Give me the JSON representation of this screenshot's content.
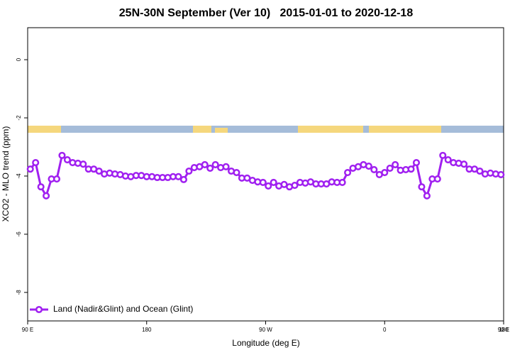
{
  "chart_data": {
    "type": "line",
    "title": "25N-30N September (Ver 10)   2015-01-01 to 2020-12-18",
    "x_label": "Longitude (deg E)",
    "y_label": "XCO2 - MLO trend (ppm)",
    "xlim": [
      90,
      450
    ],
    "xticks": [
      {
        "value": 90,
        "label": "90 E"
      },
      {
        "value": 180,
        "label": "180"
      },
      {
        "value": 270,
        "label": "90 W"
      },
      {
        "value": 360,
        "label": "0"
      },
      {
        "value": 450,
        "label": "90 E"
      },
      {
        "value": 540,
        "label": "180"
      }
    ],
    "ylim": [
      -8.98,
      1.1
    ],
    "yticks": [
      0,
      -2,
      -4,
      -6,
      -8
    ],
    "legend": "bottom-left",
    "x": [
      92,
      96,
      100,
      104,
      108,
      112,
      116,
      120,
      124,
      128,
      132,
      136,
      140,
      144,
      148,
      152,
      156,
      160,
      164,
      168,
      172,
      176,
      180,
      184,
      188,
      192,
      196,
      200,
      204,
      208,
      212,
      216,
      220,
      224,
      228,
      232,
      236,
      240,
      244,
      248,
      252,
      256,
      260,
      264,
      268,
      272,
      276,
      280,
      284,
      288,
      292,
      296,
      300,
      304,
      308,
      312,
      316,
      320,
      324,
      328,
      332,
      336,
      340,
      344,
      348,
      352,
      356,
      360,
      364,
      368,
      372,
      376,
      380,
      384,
      388,
      392,
      396,
      400,
      404,
      408,
      412,
      416,
      420,
      424,
      428,
      432,
      436,
      440,
      444,
      448
    ],
    "series": [
      {
        "name": "Land (Nadir&Glint) and Ocean (Glint)",
        "color": "#a020f0",
        "values": [
          -3.76,
          -3.54,
          -4.37,
          -4.68,
          -4.1,
          -4.1,
          -3.29,
          -3.44,
          -3.54,
          -3.56,
          -3.59,
          -3.76,
          -3.76,
          -3.83,
          -3.93,
          -3.9,
          -3.93,
          -3.95,
          -4.0,
          -4.02,
          -3.98,
          -3.98,
          -4.02,
          -4.02,
          -4.05,
          -4.05,
          -4.05,
          -4.02,
          -4.02,
          -4.12,
          -3.83,
          -3.71,
          -3.68,
          -3.61,
          -3.73,
          -3.61,
          -3.71,
          -3.68,
          -3.83,
          -3.88,
          -4.07,
          -4.07,
          -4.15,
          -4.2,
          -4.22,
          -4.34,
          -4.22,
          -4.34,
          -4.29,
          -4.37,
          -4.32,
          -4.22,
          -4.24,
          -4.2,
          -4.27,
          -4.27,
          -4.27,
          -4.2,
          -4.22,
          -4.22,
          -3.88,
          -3.73,
          -3.68,
          -3.61,
          -3.66,
          -3.78,
          -3.95,
          -3.88,
          -3.73,
          -3.61,
          -3.8,
          -3.78,
          -3.76,
          -3.54,
          -4.37,
          -4.68,
          -4.1,
          -4.1,
          -3.29,
          -3.44,
          -3.54,
          -3.56,
          -3.59,
          -3.76,
          -3.76,
          -3.83,
          -3.93,
          -3.9,
          -3.93,
          -3.95
        ]
      }
    ]
  }
}
